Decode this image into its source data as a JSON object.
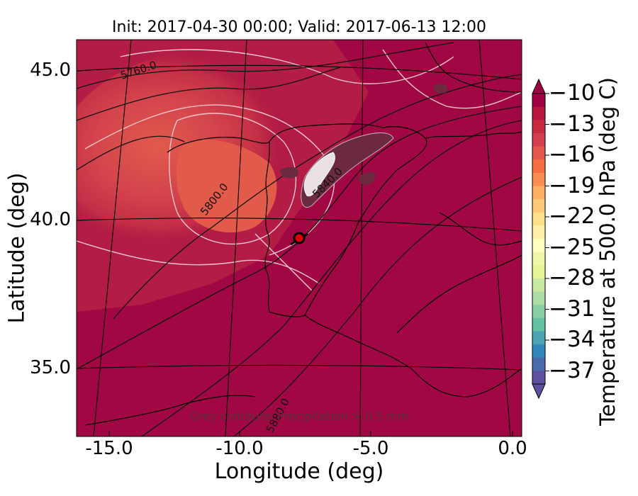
{
  "title": "Init: 2017-04-30 00:00; Valid: 2017-06-13 12:00",
  "axes": {
    "xlabel": "Longitude (deg)",
    "ylabel": "Latitude (deg)",
    "xticks": [
      "-15.0",
      "-10.0",
      "-5.0",
      "0.0"
    ],
    "yticks": [
      "45.0",
      "40.0",
      "35.0"
    ]
  },
  "colorbar": {
    "label": "Temperature at 500.0 hPa (deg C)",
    "ticks": [
      "−10",
      "−13",
      "−16",
      "−19",
      "−22",
      "−25",
      "−28",
      "−31",
      "−34",
      "−37"
    ],
    "colors": [
      "#9e0142",
      "#b4163f",
      "#c52a3e",
      "#d53e4f",
      "#e35649",
      "#f46d43",
      "#f88d52",
      "#fdae61",
      "#fdc877",
      "#fee08b",
      "#fff1a8",
      "#ffffbf",
      "#f0f8a8",
      "#e6f598",
      "#c7e9a0",
      "#abdda4",
      "#88cfa4",
      "#66c2a5",
      "#4ca3b3",
      "#3288bd",
      "#4a6aae",
      "#5e4fa2"
    ]
  },
  "contour_labels": [
    "5760.0",
    "5800.0",
    "5840.0",
    "5880.0"
  ],
  "note": "Grey contours: Precipitation > 0.5 mm",
  "marker": {
    "lon": -7.6,
    "lat": 39.3
  }
}
